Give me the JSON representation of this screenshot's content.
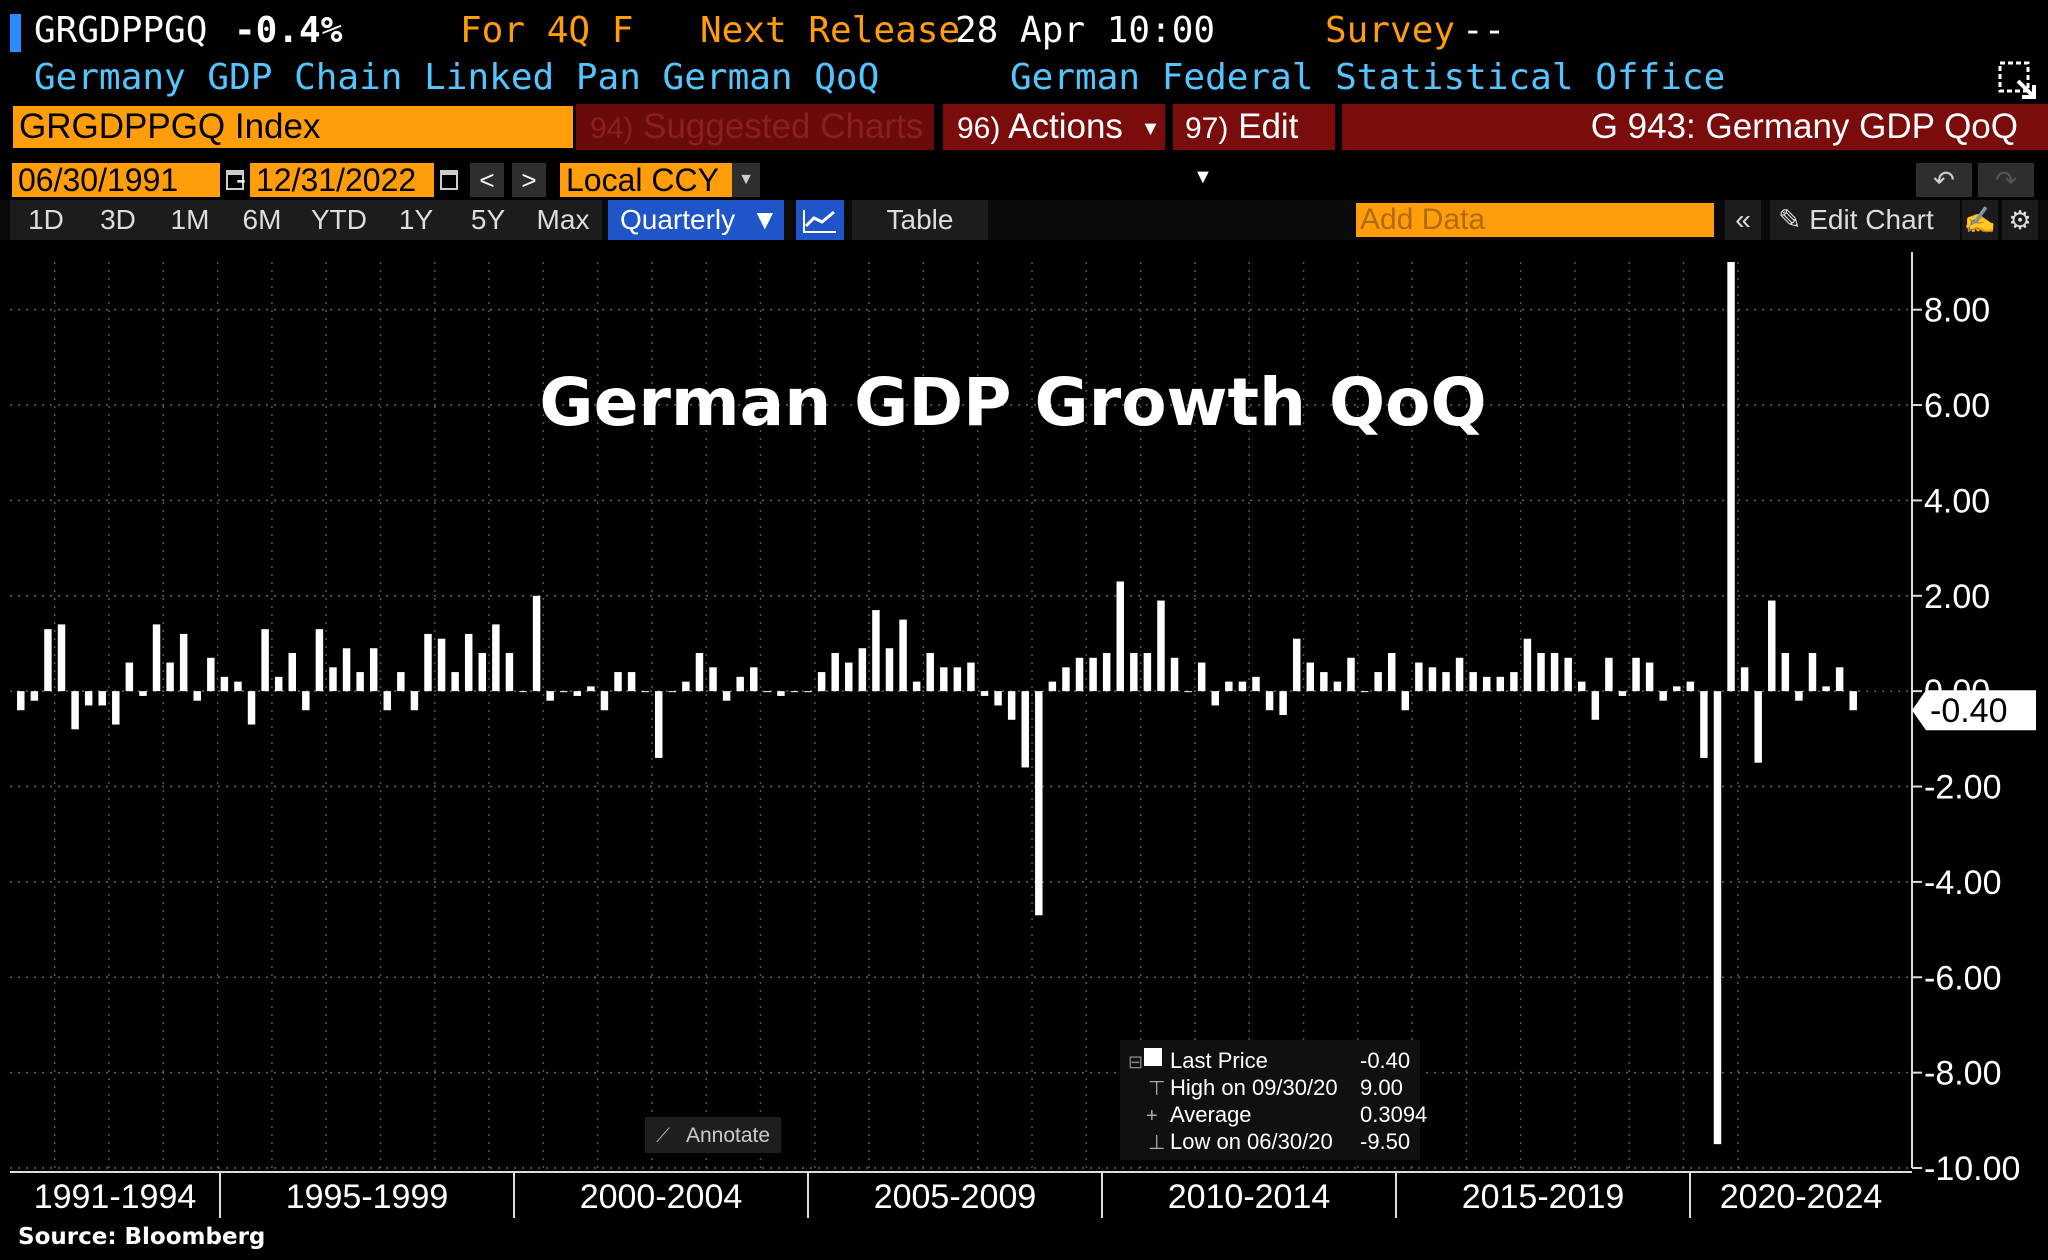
{
  "header": {
    "ticker": "GRGDPPGQ",
    "last_change": "-0.4%",
    "for_period": "For 4Q F",
    "next_release_label": "Next Release",
    "next_release_value": "28 Apr 10:00",
    "survey_label": "Survey",
    "survey_value": "--",
    "description": "Germany GDP Chain Linked Pan German QoQ",
    "source_org": "German Federal Statistical Office"
  },
  "toolbar": {
    "security": "GRGDPPGQ Index",
    "suggested_num": "94)",
    "suggested_label": "Suggested Charts",
    "actions_num": "96)",
    "actions_label": "Actions",
    "edit_num": "97)",
    "edit_label": "Edit",
    "chart_title": "G 943: Germany GDP QoQ"
  },
  "range": {
    "start": "06/30/1991",
    "end": "12/31/2022",
    "separator": "-",
    "currency": "Local CCY",
    "prev": "<",
    "next": ">"
  },
  "periods": [
    "1D",
    "3D",
    "1M",
    "6M",
    "YTD",
    "1Y",
    "5Y",
    "Max"
  ],
  "frequency": "Quarterly",
  "table_label": "Table",
  "add_data_placeholder": "Add Data",
  "edit_chart_label": "Edit Chart",
  "colors": {
    "orange": "#ff9d0a",
    "cyan": "#54c6ff",
    "bar": "#ffffff",
    "header_red": "#7a0c0c"
  },
  "chart_data": {
    "type": "bar",
    "title": "German GDP Growth QoQ",
    "start_quarter": "1991-Q2",
    "values": [
      -0.4,
      -0.2,
      1.3,
      1.4,
      -0.8,
      -0.3,
      -0.3,
      -0.7,
      0.6,
      -0.1,
      1.4,
      0.6,
      1.2,
      -0.2,
      0.7,
      0.3,
      0.2,
      -0.7,
      1.3,
      0.3,
      0.8,
      -0.4,
      1.3,
      0.5,
      0.9,
      0.4,
      0.9,
      -0.4,
      0.4,
      -0.4,
      1.2,
      1.1,
      0.4,
      1.2,
      0.8,
      1.4,
      0.8,
      0.0,
      2.0,
      -0.2,
      0.0,
      -0.1,
      0.1,
      -0.4,
      0.4,
      0.4,
      0.0,
      -1.4,
      0.0,
      0.2,
      0.8,
      0.5,
      -0.2,
      0.3,
      0.5,
      0.0,
      -0.1,
      0.0,
      0.0,
      0.4,
      0.8,
      0.6,
      0.9,
      1.7,
      0.9,
      1.5,
      0.2,
      0.8,
      0.5,
      0.5,
      0.6,
      -0.1,
      -0.3,
      -0.6,
      -1.6,
      -4.7,
      0.2,
      0.5,
      0.7,
      0.7,
      0.8,
      2.3,
      0.8,
      0.8,
      1.9,
      0.7,
      0.0,
      0.6,
      -0.3,
      0.2,
      0.2,
      0.3,
      -0.4,
      -0.5,
      1.1,
      0.6,
      0.4,
      0.2,
      0.7,
      0.0,
      0.4,
      0.8,
      -0.4,
      0.6,
      0.5,
      0.4,
      0.7,
      0.4,
      0.3,
      0.3,
      0.4,
      1.1,
      0.8,
      0.8,
      0.7,
      0.2,
      -0.6,
      0.7,
      -0.1,
      0.7,
      0.6,
      -0.2,
      0.1,
      0.2,
      -1.4,
      -9.5,
      9.0,
      0.5,
      -1.5,
      1.9,
      0.8,
      -0.2,
      0.8,
      0.1,
      0.5,
      -0.4
    ],
    "ylim": [
      -10,
      9
    ],
    "yticks": [
      "8.00",
      "6.00",
      "4.00",
      "2.00",
      "0.00",
      "-2.00",
      "-4.00",
      "-6.00",
      "-8.00",
      "-10.00"
    ],
    "xlabels": [
      "1991-1994",
      "1995-1999",
      "2000-2004",
      "2005-2009",
      "2010-2014",
      "2015-2019",
      "2020-2024"
    ],
    "last_value_label": "-0.40",
    "legend": {
      "last_label": "Last Price",
      "last_value": "-0.40",
      "high_label": "High on 09/30/20",
      "high_value": "9.00",
      "avg_label": "Average",
      "avg_value": "0.3094",
      "low_label": "Low on 06/30/20",
      "low_value": "-9.50"
    },
    "annotate_label": "Annotate"
  },
  "source_text": "Source: Bloomberg"
}
